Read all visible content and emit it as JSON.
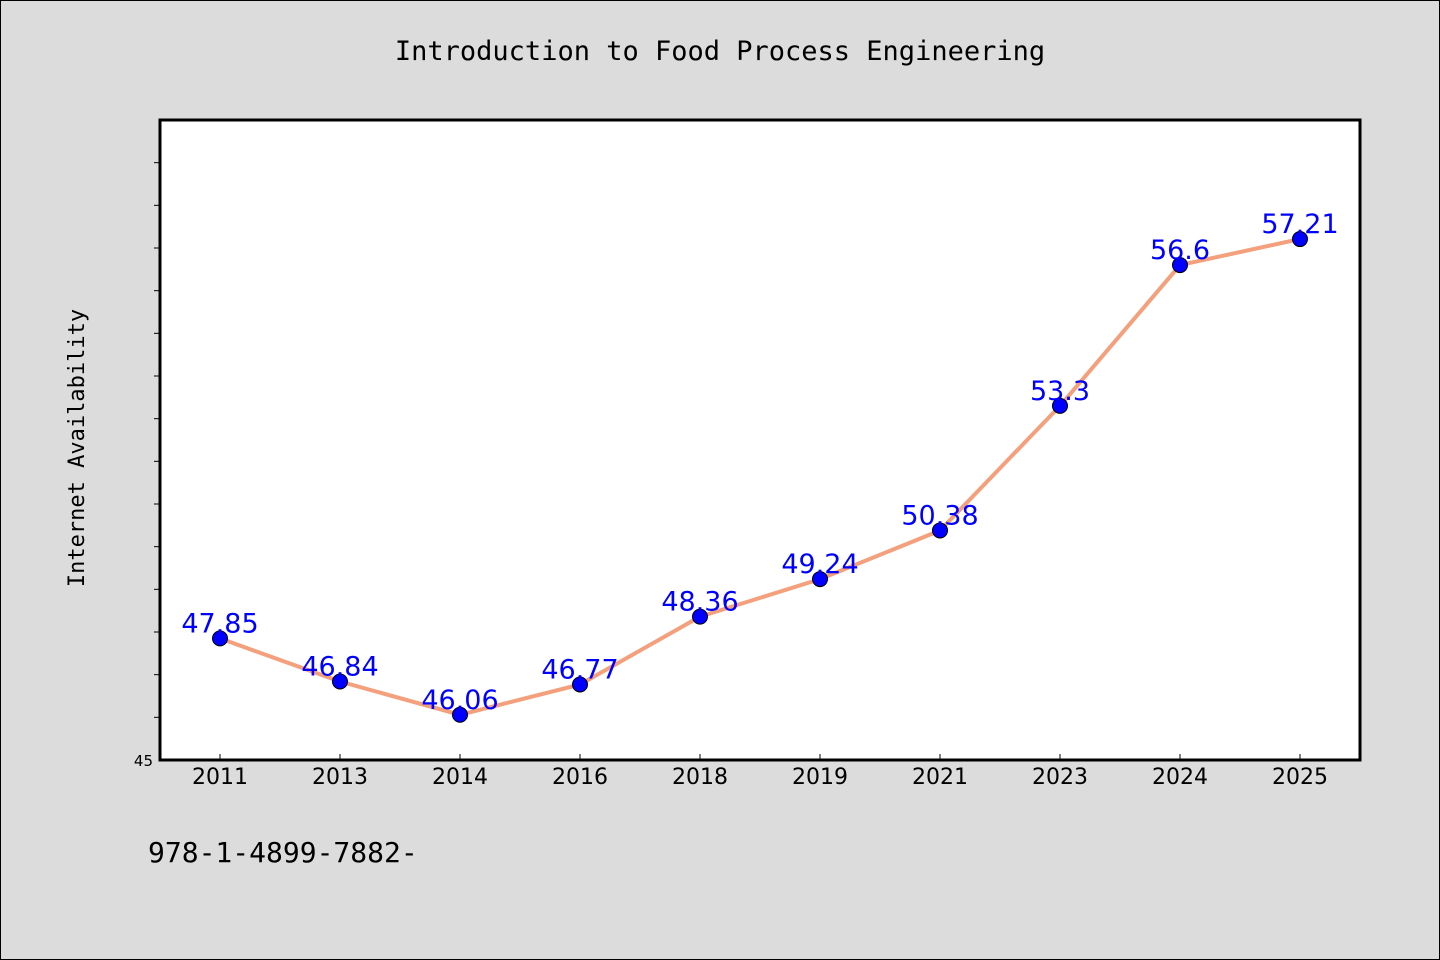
{
  "chart_data": {
    "type": "line",
    "title": "Introduction to Food Process Engineering",
    "ylabel": "Internet Availability",
    "xlabel": "",
    "categories": [
      "2011",
      "2013",
      "2014",
      "2016",
      "2018",
      "2019",
      "2021",
      "2023",
      "2024",
      "2025"
    ],
    "series": [
      {
        "values": [
          47.85,
          46.84,
          46.06,
          46.77,
          48.36,
          49.24,
          50.38,
          53.3,
          56.6,
          57.21
        ],
        "data_labels": [
          "47.85",
          "46.84",
          "46.06",
          "46.77",
          "48.36",
          "49.24",
          "50.38",
          "53.3",
          "56.6",
          "57.21"
        ]
      }
    ],
    "ylim": [
      45,
      60
    ],
    "ytick_labels": [
      "45"
    ],
    "grid": false,
    "legend": "none",
    "colors": {
      "line": "#f4a07c",
      "marker": "#0000ff",
      "data_label": "#0000ff",
      "background": "#dcdcdc",
      "plot_background": "#ffffff"
    }
  },
  "footnote": "978-1-4899-7882-"
}
